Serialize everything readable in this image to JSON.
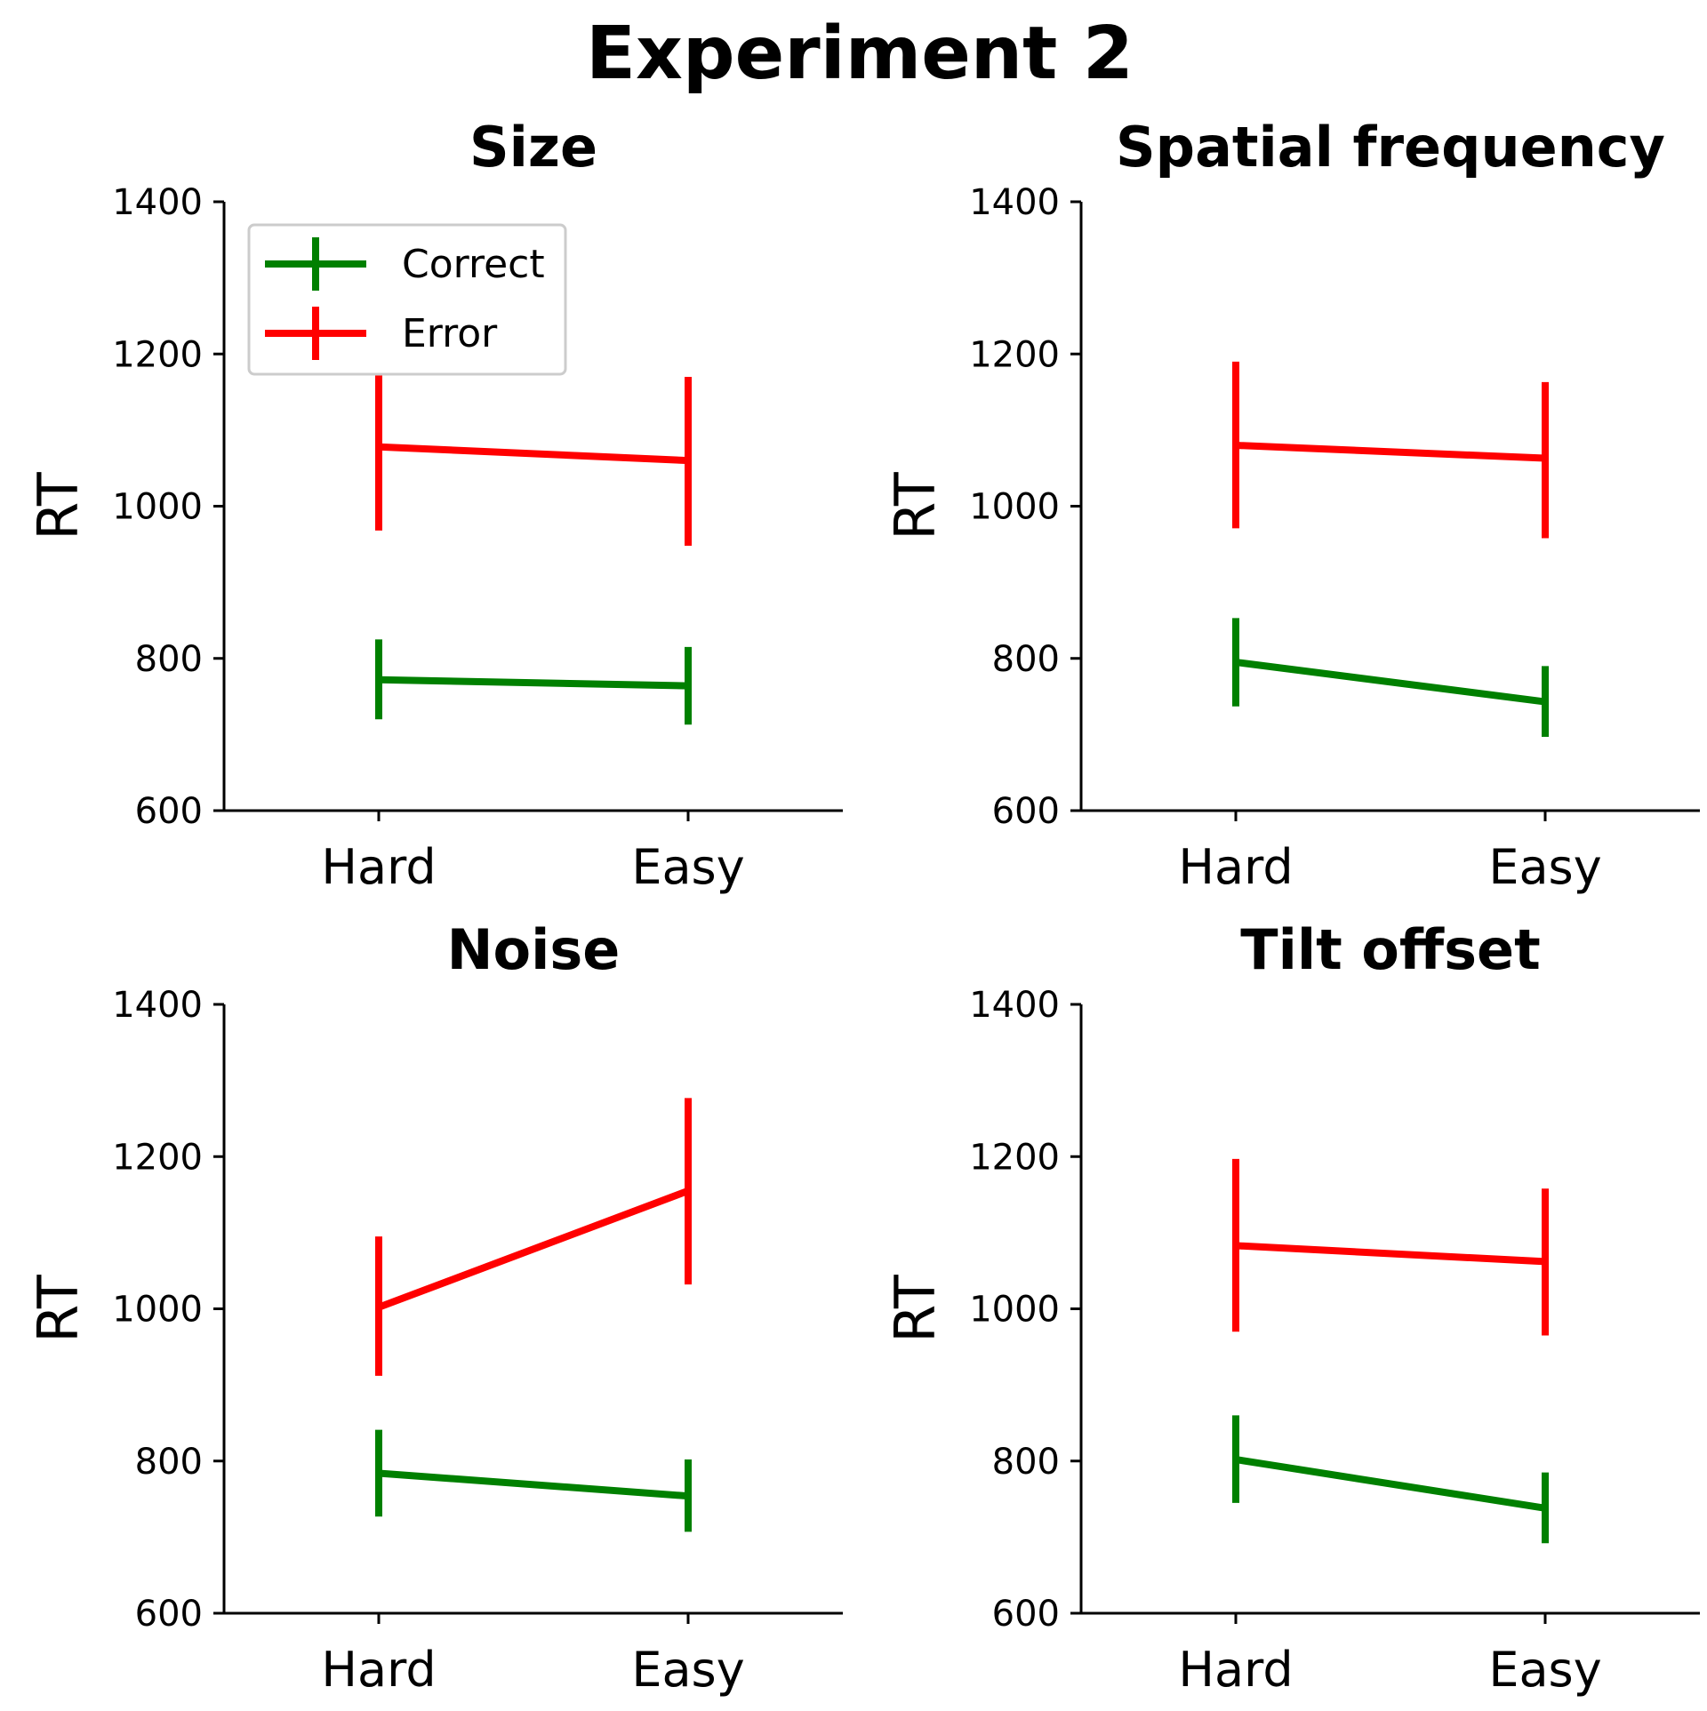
{
  "colors": {
    "correct": "#008000",
    "error": "#ff0000",
    "axis": "#000000"
  },
  "figure_title": "Experiment 2",
  "legend": {
    "placement": "upper-left",
    "in_panel": 0,
    "entries": [
      "Correct",
      "Error"
    ]
  },
  "chart_data": [
    {
      "type": "line",
      "title": "Size",
      "xlabel": "",
      "ylabel": "RT",
      "categories": [
        "Hard",
        "Easy"
      ],
      "ylim": [
        600,
        1400
      ],
      "yticks": [
        600,
        800,
        1000,
        1200,
        1400
      ],
      "grid": false,
      "series": [
        {
          "name": "Correct",
          "values": [
            772,
            764
          ],
          "err_low": [
            720,
            713
          ],
          "err_high": [
            825,
            815
          ]
        },
        {
          "name": "Error",
          "values": [
            1078,
            1060
          ],
          "err_low": [
            968,
            948
          ],
          "err_high": [
            1190,
            1170
          ]
        }
      ]
    },
    {
      "type": "line",
      "title": "Spatial frequency",
      "xlabel": "",
      "ylabel": "RT",
      "categories": [
        "Hard",
        "Easy"
      ],
      "ylim": [
        600,
        1400
      ],
      "yticks": [
        600,
        800,
        1000,
        1200,
        1400
      ],
      "grid": false,
      "series": [
        {
          "name": "Correct",
          "values": [
            795,
            743
          ],
          "err_low": [
            737,
            697
          ],
          "err_high": [
            853,
            790
          ]
        },
        {
          "name": "Error",
          "values": [
            1080,
            1063
          ],
          "err_low": [
            971,
            958
          ],
          "err_high": [
            1190,
            1163
          ]
        }
      ]
    },
    {
      "type": "line",
      "title": "Noise",
      "xlabel": "",
      "ylabel": "RT",
      "categories": [
        "Hard",
        "Easy"
      ],
      "ylim": [
        600,
        1400
      ],
      "yticks": [
        600,
        800,
        1000,
        1200,
        1400
      ],
      "grid": false,
      "series": [
        {
          "name": "Correct",
          "values": [
            784,
            754
          ],
          "err_low": [
            727,
            707
          ],
          "err_high": [
            841,
            802
          ]
        },
        {
          "name": "Error",
          "values": [
            1002,
            1155
          ],
          "err_low": [
            912,
            1032
          ],
          "err_high": [
            1095,
            1277
          ]
        }
      ]
    },
    {
      "type": "line",
      "title": "Tilt offset",
      "xlabel": "",
      "ylabel": "RT",
      "categories": [
        "Hard",
        "Easy"
      ],
      "ylim": [
        600,
        1400
      ],
      "yticks": [
        600,
        800,
        1000,
        1200,
        1400
      ],
      "grid": false,
      "series": [
        {
          "name": "Correct",
          "values": [
            802,
            738
          ],
          "err_low": [
            745,
            692
          ],
          "err_high": [
            860,
            785
          ]
        },
        {
          "name": "Error",
          "values": [
            1083,
            1062
          ],
          "err_low": [
            970,
            965
          ],
          "err_high": [
            1197,
            1158
          ]
        }
      ]
    }
  ]
}
